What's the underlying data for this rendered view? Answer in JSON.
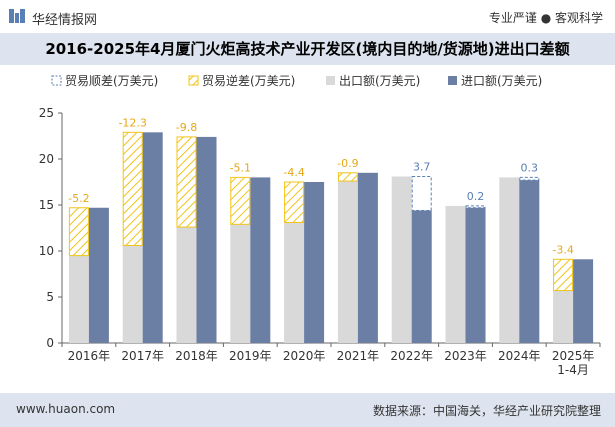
{
  "header": {
    "brand": "华经情报网",
    "slogan": "专业严谨 ● 客观科学"
  },
  "footer": {
    "site": "www.huaon.com",
    "source": "数据来源：中国海关，华经产业研究院整理"
  },
  "colors": {
    "export": "#d9d9d9",
    "import": "#6b7ea3",
    "surplus_border": "#5a7fb5",
    "deficit_border": "#f0c419",
    "deficit_label": "#e6a817",
    "title_band": "#dde4ef"
  },
  "chart_data": {
    "type": "bar",
    "title": "2016-2025年4月厦门火炬高技术产业开发区(境内目的地/货源地)进出口差额",
    "categories": [
      "2016年",
      "2017年",
      "2018年",
      "2019年",
      "2020年",
      "2021年",
      "2022年",
      "2023年",
      "2024年",
      "2025年\n1-4月"
    ],
    "ylim": [
      0,
      25
    ],
    "yticks": [
      0,
      5,
      10,
      15,
      20,
      25
    ],
    "legend": [
      "贸易顺差(万美元)",
      "贸易逆差(万美元)",
      "出口额(万美元)",
      "进口额(万美元)"
    ],
    "legend_position": "top-left",
    "grid": false,
    "series": [
      {
        "name": "出口额(万美元)",
        "values": [
          9.5,
          10.6,
          12.6,
          12.9,
          13.1,
          17.6,
          18.1,
          14.9,
          18.0,
          5.7
        ]
      },
      {
        "name": "进口额(万美元)",
        "values": [
          14.7,
          22.9,
          22.4,
          18.0,
          17.5,
          18.5,
          14.4,
          14.7,
          17.7,
          9.1
        ]
      }
    ],
    "balance_labels": [
      "-5.2",
      "-12.3",
      "-9.8",
      "-5.1",
      "-4.4",
      "-0.9",
      "3.7",
      "0.2",
      "0.3",
      "-3.4"
    ]
  }
}
